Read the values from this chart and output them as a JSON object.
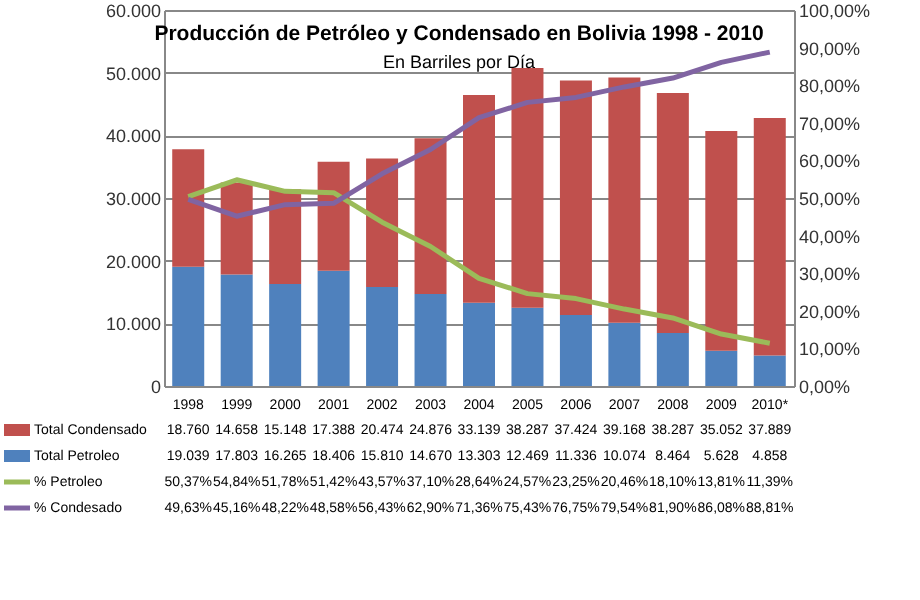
{
  "chart_data": {
    "type": "bar",
    "title": "Producción de Petróleo y Condensado en Bolivia 1998 - 2010",
    "subtitle": "En Barriles por Día",
    "categories": [
      "1998",
      "1999",
      "2000",
      "2001",
      "2002",
      "2003",
      "2004",
      "2005",
      "2006",
      "2007",
      "2008",
      "2009",
      "2010*"
    ],
    "stacked": true,
    "grid": "y",
    "legend": "bottom",
    "marker": "none",
    "ylim": [
      0,
      60000
    ],
    "yticks": [
      {
        "value": 0,
        "label": "0"
      },
      {
        "value": 10000,
        "label": "10.000"
      },
      {
        "value": 20000,
        "label": "20.000"
      },
      {
        "value": 30000,
        "label": "30.000"
      },
      {
        "value": 40000,
        "label": "40.000"
      },
      {
        "value": 50000,
        "label": "50.000"
      },
      {
        "value": 60000,
        "label": "60.000"
      }
    ],
    "y2lim": [
      0,
      100
    ],
    "y2ticks": [
      {
        "value": 0,
        "label": "0,00%"
      },
      {
        "value": 10,
        "label": "10,00%"
      },
      {
        "value": 20,
        "label": "20,00%"
      },
      {
        "value": 30,
        "label": "30,00%"
      },
      {
        "value": 40,
        "label": "40,00%"
      },
      {
        "value": 50,
        "label": "50,00%"
      },
      {
        "value": 60,
        "label": "60,00%"
      },
      {
        "value": 70,
        "label": "70,00%"
      },
      {
        "value": 80,
        "label": "80,00%"
      },
      {
        "value": 90,
        "label": "90,00%"
      },
      {
        "value": 100,
        "label": "100,00%"
      }
    ],
    "series": [
      {
        "name": "Total Petroleo",
        "color": "#4f81bd",
        "values": [
          19039,
          17803,
          16265,
          18406,
          15810,
          14670,
          13303,
          12469,
          11336,
          10074,
          8464,
          5628,
          4858
        ],
        "value_labels": [
          "19.039",
          "17.803",
          "16.265",
          "18.406",
          "15.810",
          "14.670",
          "13.303",
          "12.469",
          "11.336",
          "10.074",
          "8.464",
          "5.628",
          "4.858"
        ]
      },
      {
        "name": "Total Condensado",
        "color": "#c0504d",
        "values": [
          18760,
          14658,
          15148,
          17388,
          20474,
          24876,
          33139,
          38287,
          37424,
          39168,
          38287,
          35052,
          37889
        ],
        "value_labels": [
          "18.760",
          "14.658",
          "15.148",
          "17.388",
          "20.474",
          "24.876",
          "33.139",
          "38.287",
          "37.424",
          "39.168",
          "38.287",
          "35.052",
          "37.889"
        ]
      },
      {
        "name": "% Petroleo",
        "type": "line",
        "axis": "y2",
        "color": "#9bbb59",
        "values": [
          50.37,
          54.84,
          51.78,
          51.42,
          43.57,
          37.1,
          28.64,
          24.57,
          23.25,
          20.46,
          18.1,
          13.81,
          11.39
        ],
        "value_labels": [
          "50,37%",
          "54,84%",
          "51,78%",
          "51,42%",
          "43,57%",
          "37,10%",
          "28,64%",
          "24,57%",
          "23,25%",
          "20,46%",
          "18,10%",
          "13,81%",
          "11,39%"
        ]
      },
      {
        "name": "% Condesado",
        "type": "line",
        "axis": "y2",
        "color": "#8064a2",
        "values": [
          49.63,
          45.16,
          48.22,
          48.58,
          56.43,
          62.9,
          71.36,
          75.43,
          76.75,
          79.54,
          81.9,
          86.08,
          88.81
        ],
        "value_labels": [
          "49,63%",
          "45,16%",
          "48,22%",
          "48,58%",
          "56,43%",
          "62,90%",
          "71,36%",
          "75,43%",
          "76,75%",
          "79,54%",
          "81,90%",
          "86,08%",
          "88,81%"
        ]
      }
    ]
  }
}
